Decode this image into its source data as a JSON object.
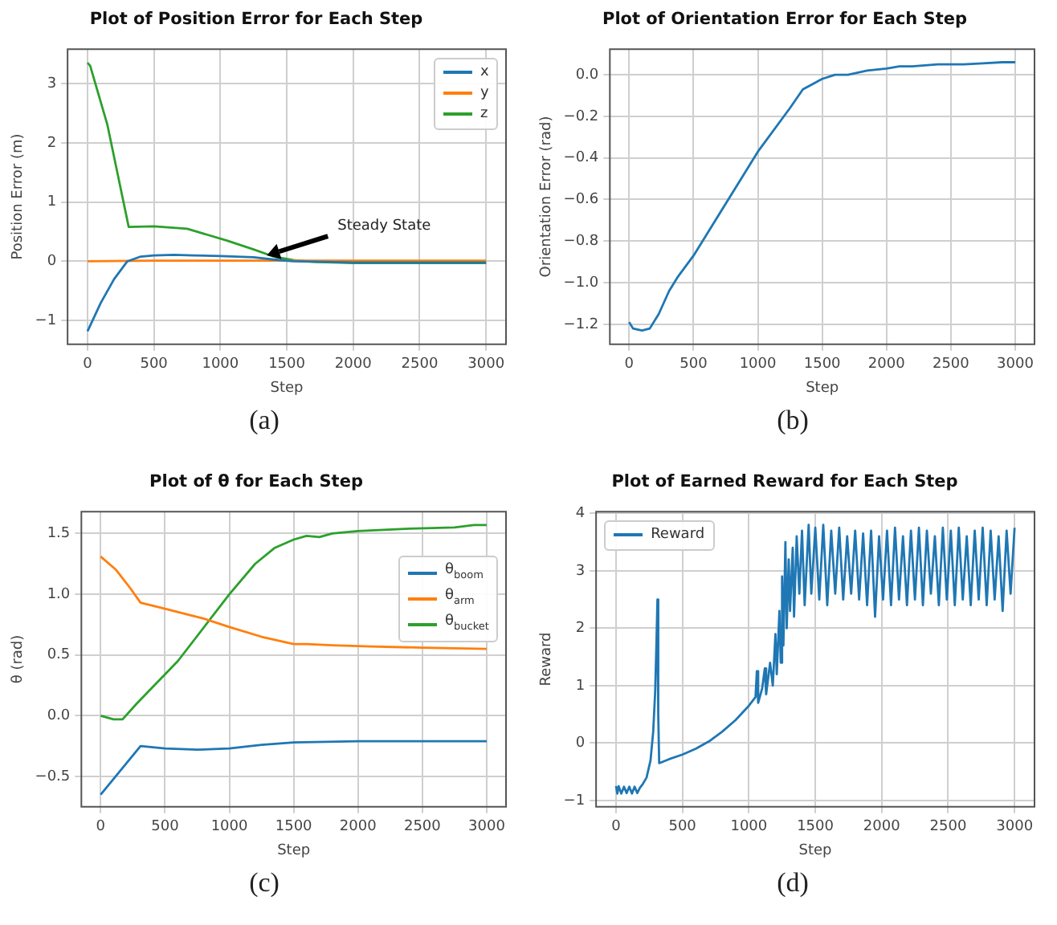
{
  "chart_data": [
    {
      "type": "line",
      "title": "Plot of Position Error for Each Step",
      "xlabel": "Step",
      "ylabel": "Position Error (m)",
      "xlim": [
        -150,
        3150
      ],
      "ylim": [
        -1.4,
        3.58
      ],
      "xticks": [
        0,
        500,
        1000,
        1500,
        2000,
        2500,
        3000
      ],
      "yticks": [
        {
          "value": -1,
          "label": "−1"
        },
        0,
        1,
        2,
        3
      ],
      "grid": true,
      "legend": "top right",
      "annotations": [
        {
          "text": "Steady State",
          "x": 1350,
          "y": 0.1
        },
        "(a)"
      ],
      "series": [
        {
          "name": "x",
          "color": "#1f77b4",
          "x": [
            0,
            100,
            200,
            300,
            400,
            500,
            650,
            800,
            1000,
            1250,
            1400,
            1550,
            2000,
            2500,
            3000
          ],
          "values": [
            -1.18,
            -0.7,
            -0.3,
            0,
            0.08,
            0.1,
            0.11,
            0.1,
            0.09,
            0.07,
            0.03,
            0,
            -0.02,
            -0.02,
            -0.02
          ]
        },
        {
          "name": "y",
          "color": "#ff7f0e",
          "x": [
            0,
            500,
            1000,
            1500,
            2000,
            2500,
            3000
          ],
          "values": [
            0,
            0.01,
            0.01,
            0.01,
            0.01,
            0.01,
            0.01
          ]
        },
        {
          "name": "z",
          "color": "#2ca02c",
          "x": [
            0,
            20,
            150,
            310,
            500,
            750,
            900,
            1050,
            1250,
            1400,
            1550,
            1700,
            2000,
            2500,
            3000
          ],
          "values": [
            3.35,
            3.3,
            2.3,
            0.58,
            0.59,
            0.55,
            0.45,
            0.35,
            0.2,
            0.08,
            0.02,
            -0.01,
            -0.03,
            -0.03,
            -0.03
          ]
        }
      ]
    },
    {
      "type": "line",
      "title": "Plot of Orientation Error for Each Step",
      "xlabel": "Step",
      "ylabel": "Orientation Error (rad)",
      "xlim": [
        -150,
        3150
      ],
      "ylim": [
        -1.296,
        0.123
      ],
      "xticks": [
        0,
        500,
        1000,
        1500,
        2000,
        2500,
        3000
      ],
      "yticks": [
        {
          "value": -1.2,
          "label": "−1.2"
        },
        {
          "value": -1,
          "label": "−1.0"
        },
        {
          "value": -0.8,
          "label": "−0.8"
        },
        {
          "value": -0.6,
          "label": "−0.6"
        },
        {
          "value": -0.4,
          "label": "−0.4"
        },
        {
          "value": -0.2,
          "label": "−0.2"
        },
        {
          "value": 0,
          "label": "0.0"
        }
      ],
      "grid": true,
      "annotations": [
        "(b)"
      ],
      "series": [
        {
          "color": "#1f77b4",
          "x": [
            0,
            30,
            100,
            160,
            230,
            310,
            380,
            500,
            750,
            1000,
            1250,
            1350,
            1500,
            1600,
            1700,
            1850,
            2000,
            2100,
            2200,
            2400,
            2600,
            2750,
            2900,
            3000
          ],
          "values": [
            -1.19,
            -1.22,
            -1.23,
            -1.22,
            -1.15,
            -1.04,
            -0.97,
            -0.87,
            -0.62,
            -0.37,
            -0.16,
            -0.07,
            -0.02,
            0,
            0,
            0.02,
            0.03,
            0.04,
            0.04,
            0.05,
            0.05,
            0.055,
            0.06,
            0.06
          ]
        }
      ]
    },
    {
      "type": "line",
      "title": "Plot of θ for Each Step",
      "xlabel": "Step",
      "ylabel": "θ (rad)",
      "xlim": [
        -150,
        3150
      ],
      "ylim": [
        -0.75,
        1.68
      ],
      "xticks": [
        0,
        500,
        1000,
        1500,
        2000,
        2500,
        3000
      ],
      "yticks": [
        {
          "value": -0.5,
          "label": "−0.5"
        },
        {
          "value": 0,
          "label": "0.0"
        },
        {
          "value": 0.5,
          "label": "0.5"
        },
        {
          "value": 1,
          "label": "1.0"
        },
        {
          "value": 1.5,
          "label": "1.5"
        }
      ],
      "grid": true,
      "legend": "right",
      "annotations": [
        "(c)"
      ],
      "series": [
        {
          "name": "θ$_{boom}$",
          "color": "#1f77b4",
          "x": [
            0,
            310,
            500,
            750,
            1000,
            1250,
            1500,
            2000,
            3000
          ],
          "values": [
            -0.65,
            -0.25,
            -0.27,
            -0.28,
            -0.27,
            -0.24,
            -0.22,
            -0.21,
            -0.21
          ]
        },
        {
          "name": "θ$_{arm}$",
          "color": "#ff7f0e",
          "x": [
            0,
            120,
            230,
            310,
            500,
            800,
            1000,
            1250,
            1500,
            1600,
            1800,
            2100,
            2500,
            3000
          ],
          "values": [
            1.31,
            1.2,
            1.05,
            0.93,
            0.88,
            0.8,
            0.73,
            0.65,
            0.59,
            0.59,
            0.58,
            0.57,
            0.56,
            0.55
          ]
        },
        {
          "name": "θ$_{bucket}$",
          "color": "#2ca02c",
          "x": [
            0,
            100,
            170,
            280,
            600,
            1000,
            1200,
            1350,
            1500,
            1600,
            1700,
            1800,
            2000,
            2400,
            2750,
            2900,
            3000
          ],
          "values": [
            0,
            -0.03,
            -0.03,
            0.1,
            0.45,
            1,
            1.25,
            1.38,
            1.45,
            1.48,
            1.47,
            1.5,
            1.52,
            1.54,
            1.55,
            1.57,
            1.57
          ]
        }
      ]
    },
    {
      "type": "line",
      "title": "Plot of Earned Reward for Each Step",
      "xlabel": "Step",
      "ylabel": "Reward",
      "xlim": [
        -150,
        3150
      ],
      "ylim": [
        -1.11,
        4.03
      ],
      "xticks": [
        0,
        500,
        1000,
        1500,
        2000,
        2500,
        3000
      ],
      "yticks": [
        {
          "value": -1,
          "label": "−1"
        },
        0,
        1,
        2,
        3,
        4
      ],
      "grid": true,
      "legend": "top left",
      "annotations": [
        "(d)"
      ],
      "series": [
        {
          "name": "Reward",
          "color": "#1f77b4",
          "x": [
            0,
            10,
            20,
            40,
            60,
            80,
            100,
            120,
            140,
            160,
            180,
            200,
            230,
            260,
            280,
            295,
            305,
            312,
            318,
            325,
            400,
            500,
            600,
            700,
            800,
            900,
            1000,
            1050,
            1060,
            1070,
            1100,
            1120,
            1130,
            1160,
            1180,
            1200,
            1210,
            1230,
            1240,
            1250,
            1260,
            1275,
            1285,
            1300,
            1310,
            1330,
            1340,
            1360,
            1380,
            1400,
            1420,
            1450,
            1470,
            1500,
            1530,
            1560,
            1590,
            1620,
            1650,
            1680,
            1710,
            1740,
            1770,
            1800,
            1830,
            1860,
            1890,
            1920,
            1950,
            1980,
            2010,
            2040,
            2070,
            2100,
            2130,
            2160,
            2190,
            2220,
            2250,
            2280,
            2310,
            2340,
            2370,
            2400,
            2430,
            2460,
            2490,
            2520,
            2550,
            2580,
            2610,
            2640,
            2670,
            2700,
            2730,
            2760,
            2790,
            2820,
            2850,
            2880,
            2910,
            2940,
            2970,
            3000
          ],
          "values": [
            -0.75,
            -0.88,
            -0.75,
            -0.88,
            -0.76,
            -0.87,
            -0.76,
            -0.88,
            -0.76,
            -0.87,
            -0.78,
            -0.72,
            -0.6,
            -0.3,
            0.2,
            0.9,
            1.8,
            2.5,
            0.5,
            -0.35,
            -0.28,
            -0.2,
            -0.1,
            0.03,
            0.2,
            0.4,
            0.65,
            0.8,
            1.25,
            0.7,
            0.95,
            1.3,
            0.85,
            1.4,
            1,
            1.9,
            1.2,
            2.3,
            1.4,
            2.9,
            1.7,
            3.5,
            2,
            3.2,
            2.3,
            3.4,
            2.2,
            3.6,
            2.6,
            3.7,
            2.4,
            3.8,
            2.6,
            3.75,
            2.5,
            3.8,
            2.4,
            3.7,
            2.6,
            3.75,
            2.5,
            3.6,
            2.6,
            3.7,
            2.5,
            3.65,
            2.4,
            3.7,
            2.2,
            3.6,
            2.5,
            3.7,
            2.4,
            3.75,
            2.5,
            3.6,
            2.4,
            3.7,
            2.5,
            3.75,
            2.4,
            3.7,
            2.6,
            3.6,
            2.4,
            3.75,
            2.5,
            3.7,
            2.4,
            3.75,
            2.5,
            3.6,
            2.4,
            3.7,
            2.5,
            3.75,
            2.4,
            3.7,
            2.5,
            3.6,
            2.3,
            3.7,
            2.6,
            3.75
          ]
        }
      ]
    }
  ]
}
